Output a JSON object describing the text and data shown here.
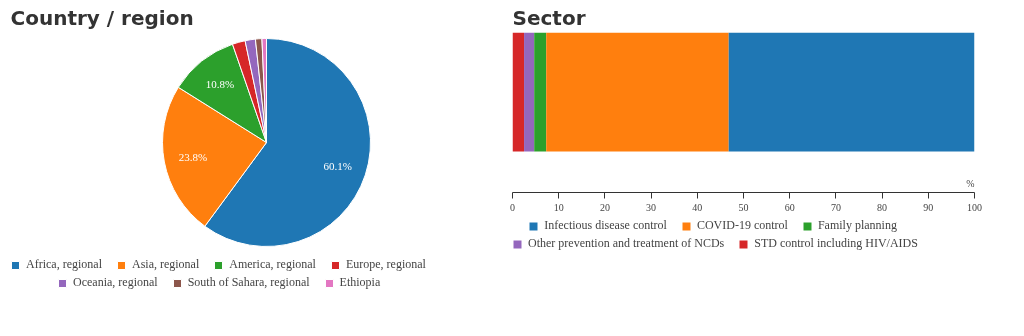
{
  "chart_data": [
    {
      "type": "pie",
      "title": "Country / region",
      "categories": [
        "Africa, regional",
        "Asia, regional",
        "America, regional",
        "Europe, regional",
        "Oceania, regional",
        "South of Sahara, regional",
        "Ethiopia"
      ],
      "values": [
        60.1,
        23.8,
        10.8,
        2.0,
        1.6,
        1.0,
        0.7
      ],
      "colors": [
        "#1f77b4",
        "#ff7f0e",
        "#2ca02c",
        "#d62728",
        "#9467bd",
        "#8c564b",
        "#e377c2"
      ],
      "value_labels": [
        "60.1%",
        "23.8%",
        "10.8%",
        null,
        null,
        null,
        null
      ],
      "legend": "bottom"
    },
    {
      "type": "bar",
      "title": "Sector",
      "orientation": "horizontal",
      "stacked": true,
      "categories": [
        null
      ],
      "xlabel": "%",
      "xlim": [
        0,
        100
      ],
      "xticks": [
        0,
        10,
        20,
        30,
        40,
        50,
        60,
        70,
        80,
        90,
        100
      ],
      "legend": "bottom",
      "series": [
        {
          "name": "STD control including HIV/AIDS",
          "color": "#d62728",
          "values": [
            2.5
          ]
        },
        {
          "name": "Other prevention and treatment of NCDs",
          "color": "#9467bd",
          "values": [
            2.2
          ]
        },
        {
          "name": "Family planning",
          "color": "#2ca02c",
          "values": [
            2.6
          ]
        },
        {
          "name": "COVID-19 control",
          "color": "#ff7f0e",
          "values": [
            39.5
          ]
        },
        {
          "name": "Infectious disease control",
          "color": "#1f77b4",
          "values": [
            53.2
          ]
        }
      ]
    }
  ]
}
